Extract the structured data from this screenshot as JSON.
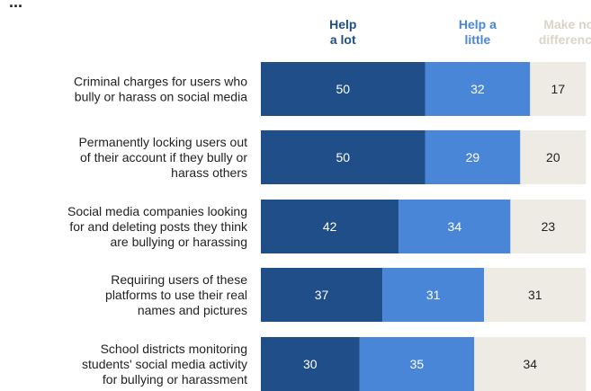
{
  "chart_data": {
    "type": "bar",
    "orientation": "horizontal",
    "stacked": true,
    "clipped_title_fragment": "...",
    "legend": {
      "position": "top",
      "entries": [
        {
          "label_lines": [
            "Help",
            "a lot"
          ],
          "color": "#1f4e89"
        },
        {
          "label_lines": [
            "Help a",
            "little"
          ],
          "color": "#4a86d8"
        },
        {
          "label_lines": [
            "Make no",
            "difference"
          ],
          "color": "#dddad0"
        }
      ]
    },
    "categories": [
      [
        "Criminal charges for users who",
        "bully or harass on social media"
      ],
      [
        "Permanently locking users out",
        "of their account if they bully or",
        "harass others"
      ],
      [
        "Social media companies looking",
        "for and deleting posts they think",
        "are bullying or harassing"
      ],
      [
        "Requiring users of these",
        "platforms to use their real",
        "names and pictures"
      ],
      [
        "School districts monitoring",
        "students' social media activity",
        "for bullying or harassment"
      ]
    ],
    "series": [
      {
        "name": "Help a lot",
        "values": [
          50,
          50,
          42,
          37,
          30
        ],
        "color": "#1f4e89",
        "label_color": "#ffffff"
      },
      {
        "name": "Help a little",
        "values": [
          32,
          29,
          34,
          31,
          35
        ],
        "color": "#4a86d8",
        "label_color": "#ffffff"
      },
      {
        "name": "Make no difference",
        "values": [
          17,
          20,
          23,
          31,
          34
        ],
        "color": "#edebe4",
        "label_color": "#222222"
      }
    ],
    "legend_colors": {
      "help_a_lot": "#1f4e89",
      "help_a_little": "#4a86d8",
      "make_no_difference": "#d9d5c6"
    }
  }
}
